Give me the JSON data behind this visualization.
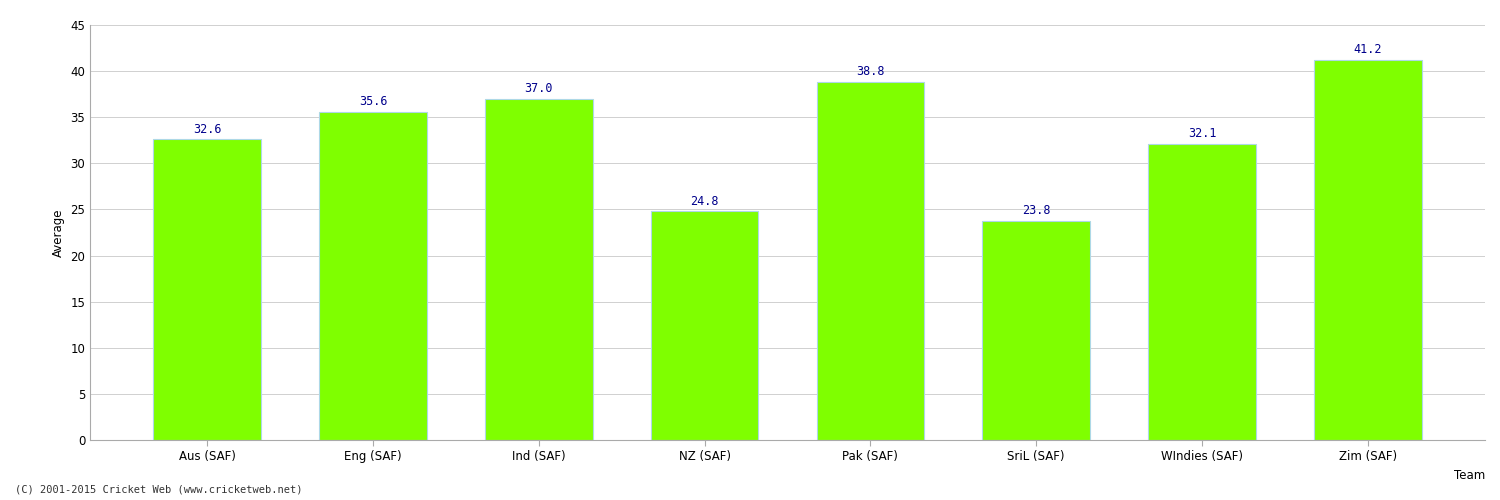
{
  "categories": [
    "Aus (SAF)",
    "Eng (SAF)",
    "Ind (SAF)",
    "NZ (SAF)",
    "Pak (SAF)",
    "SriL (SAF)",
    "WIndies (SAF)",
    "Zim (SAF)"
  ],
  "values": [
    32.6,
    35.6,
    37.0,
    24.8,
    38.8,
    23.8,
    32.1,
    41.2
  ],
  "bar_color": "#7FFF00",
  "bar_edge_color": "#ADD8E6",
  "label_color": "#00008B",
  "xlabel": "Team",
  "ylabel": "Average",
  "ylim": [
    0,
    45
  ],
  "yticks": [
    0,
    5,
    10,
    15,
    20,
    25,
    30,
    35,
    40,
    45
  ],
  "background_color": "#FFFFFF",
  "grid_color": "#D0D0D0",
  "footer": "(C) 2001-2015 Cricket Web (www.cricketweb.net)",
  "label_fontsize": 8.5,
  "axis_fontsize": 8.5,
  "bar_width": 0.65
}
